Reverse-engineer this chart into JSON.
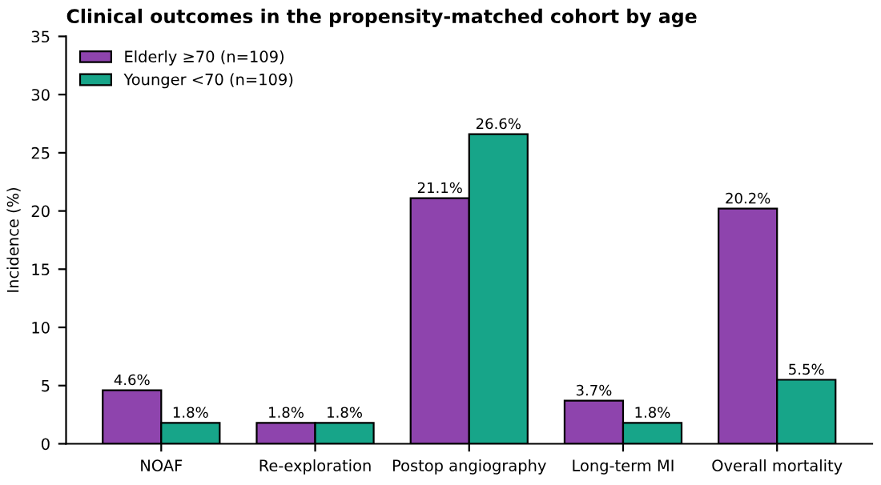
{
  "chart_data": {
    "type": "bar",
    "title": "Clinical outcomes in the propensity-matched cohort by age",
    "ylabel": "Incidence (%)",
    "categories": [
      "NOAF",
      "Re-exploration",
      "Postop angiography",
      "Long-term MI",
      "Overall mortality"
    ],
    "series": [
      {
        "name": "Elderly ≥70 (n=109)",
        "color": "#8e44ad",
        "values": [
          4.6,
          1.8,
          21.1,
          3.7,
          20.2
        ],
        "value_labels": [
          "4.6%",
          "1.8%",
          "21.1%",
          "3.7%",
          "20.2%"
        ]
      },
      {
        "name": "Younger <70 (n=109)",
        "color": "#17a589",
        "values": [
          1.8,
          1.8,
          26.6,
          1.8,
          5.5
        ],
        "value_labels": [
          "1.8%",
          "1.8%",
          "26.6%",
          "1.8%",
          "5.5%"
        ]
      }
    ],
    "ylim": [
      0,
      35
    ],
    "yticks": [
      0,
      5,
      10,
      15,
      20,
      25,
      30,
      35
    ],
    "legend": "top left"
  }
}
